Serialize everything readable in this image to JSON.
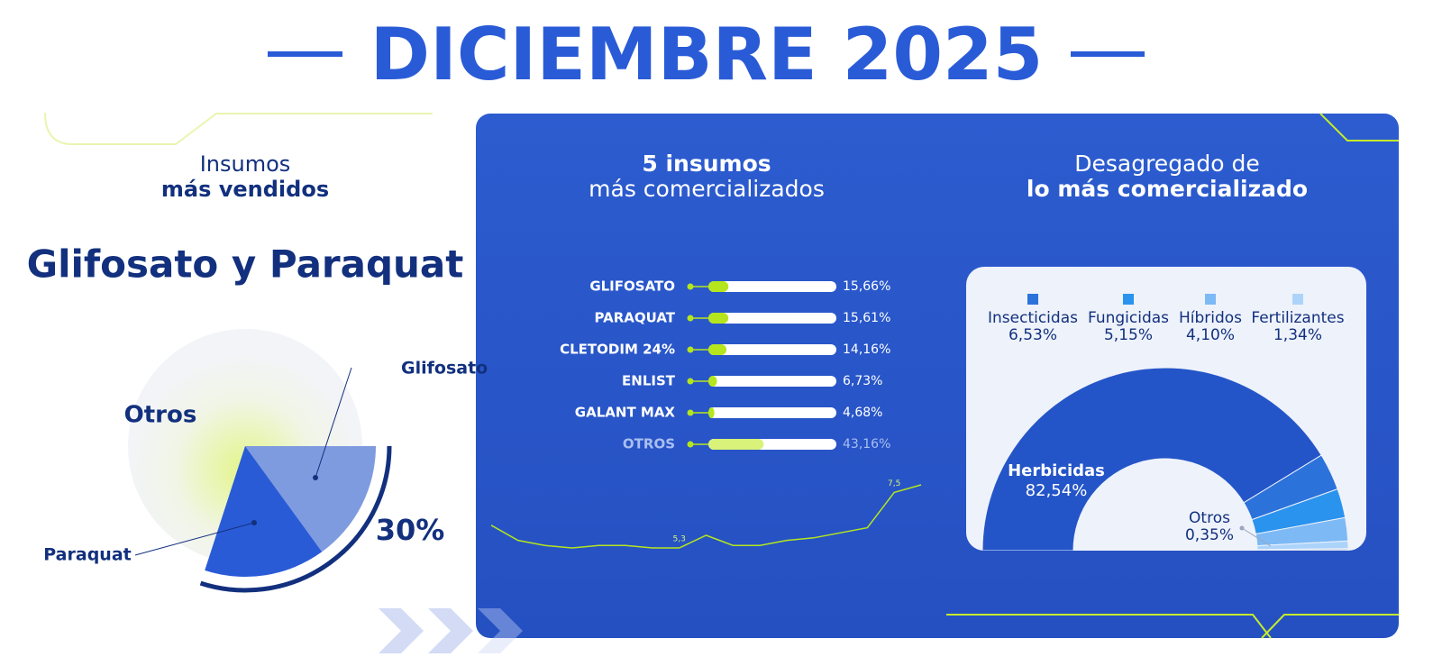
{
  "title": "DICIEMBRE 2025",
  "left": {
    "heading_line1": "Insumos",
    "heading_line2": "más vendidos",
    "subtitle": "Glifosato y Paraquat",
    "pie": {
      "other_label": "Otros",
      "segments": [
        {
          "label": "Glifosato",
          "value": 15,
          "color": "#7f9be0"
        },
        {
          "label": "Paraquat",
          "value": 15,
          "color": "#2a5bd7"
        }
      ],
      "total": 30,
      "total_label": "30%"
    }
  },
  "middle": {
    "heading_line1": "5 insumos",
    "heading_line2": "más comercializados",
    "bars": [
      {
        "label": "GLIFOSATO",
        "value": 15.66,
        "value_label": "15,66%"
      },
      {
        "label": "PARAQUAT",
        "value": 15.61,
        "value_label": "15,61%"
      },
      {
        "label": "CLETODIM 24%",
        "value": 14.16,
        "value_label": "14,16%"
      },
      {
        "label": "ENLIST",
        "value": 6.73,
        "value_label": "6,73%"
      },
      {
        "label": "GALANT MAX",
        "value": 4.68,
        "value_label": "4,68%"
      },
      {
        "label": "OTROS",
        "value": 43.16,
        "value_label": "43,16%"
      }
    ],
    "bar_color": "#b5e61d",
    "sparkline": {
      "values": [
        6.2,
        5.6,
        5.4,
        5.3,
        5.4,
        5.4,
        5.3,
        5.3,
        5.8,
        5.4,
        5.4,
        5.6,
        5.7,
        5.9,
        6.1,
        7.5,
        7.8
      ],
      "value_labels": [
        null,
        null,
        null,
        null,
        null,
        null,
        null,
        "5,3",
        null,
        null,
        null,
        null,
        null,
        null,
        null,
        "7,5",
        null
      ]
    }
  },
  "right": {
    "heading_line1": "Desagregado de",
    "heading_line2": "lo más comercializado",
    "segments": [
      {
        "name": "Herbicidas",
        "value": 82.54,
        "value_label": "82,54%",
        "color": "#2455c8"
      },
      {
        "name": "Insecticidas",
        "value": 6.53,
        "value_label": "6,53%",
        "color": "#2c72db"
      },
      {
        "name": "Fungicidas",
        "value": 5.15,
        "value_label": "5,15%",
        "color": "#2a93ee"
      },
      {
        "name": "Híbridos",
        "value": 4.1,
        "value_label": "4,10%",
        "color": "#7db9f5"
      },
      {
        "name": "Fertilizantes",
        "value": 1.34,
        "value_label": "1,34%",
        "color": "#acd4fb"
      },
      {
        "name": "Otros",
        "value": 0.35,
        "value_label": "0,35%",
        "color": "#c7d2e6"
      }
    ]
  }
}
